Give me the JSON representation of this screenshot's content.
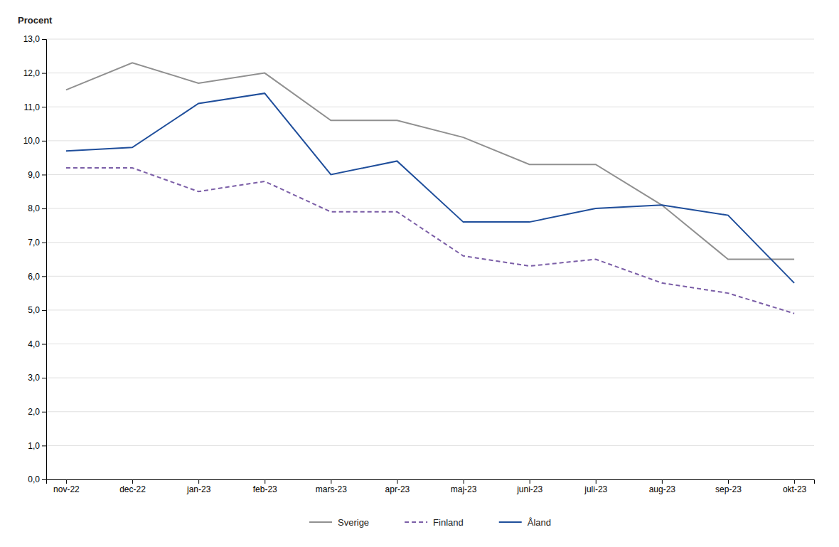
{
  "chart_data": {
    "type": "line",
    "ylabel": "Procent",
    "categories": [
      "nov-22",
      "dec-22",
      "jan-23",
      "feb-23",
      "mars-23",
      "apr-23",
      "maj-23",
      "juni-23",
      "juli-23",
      "aug-23",
      "sep-23",
      "okt-23"
    ],
    "series": [
      {
        "name": "Sverige",
        "color": "#909090",
        "line_style": "solid",
        "values": [
          11.5,
          12.3,
          11.7,
          12.0,
          10.6,
          10.6,
          10.1,
          9.3,
          9.3,
          8.1,
          6.5,
          6.5
        ]
      },
      {
        "name": "Finland",
        "color": "#7B5EA7",
        "line_style": "dashed",
        "values": [
          9.2,
          9.2,
          8.5,
          8.8,
          7.9,
          7.9,
          6.6,
          6.3,
          6.5,
          5.8,
          5.5,
          4.9
        ]
      },
      {
        "name": "Åland",
        "color": "#1F4E9B",
        "line_style": "solid",
        "values": [
          9.7,
          9.8,
          11.1,
          11.4,
          9.0,
          9.4,
          7.6,
          7.6,
          8.0,
          8.1,
          7.8,
          5.8
        ]
      }
    ],
    "ylim": [
      0.0,
      13.0
    ],
    "yticks": [
      {
        "value": 0,
        "label": "0,0"
      },
      {
        "value": 1,
        "label": "1,0"
      },
      {
        "value": 2,
        "label": "2,0"
      },
      {
        "value": 3,
        "label": "3,0"
      },
      {
        "value": 4,
        "label": "4,0"
      },
      {
        "value": 5,
        "label": "5,0"
      },
      {
        "value": 6,
        "label": "6,0"
      },
      {
        "value": 7,
        "label": "7,0"
      },
      {
        "value": 8,
        "label": "8,0"
      },
      {
        "value": 9,
        "label": "9,0"
      },
      {
        "value": 10,
        "label": "10,0"
      },
      {
        "value": 11,
        "label": "11,0"
      },
      {
        "value": 12,
        "label": "12,0"
      },
      {
        "value": 13,
        "label": "13,0"
      }
    ],
    "grid": true,
    "legend": "bottom"
  }
}
